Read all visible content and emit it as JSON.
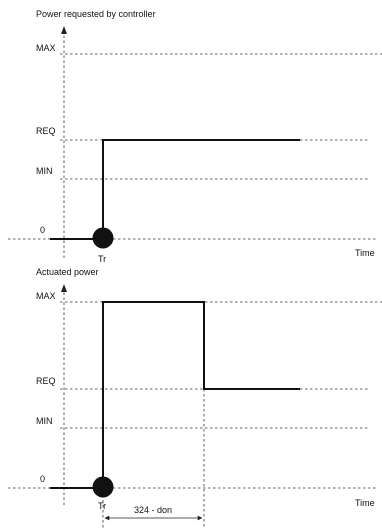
{
  "top_plot": {
    "title": "Power requested by controller",
    "levels": {
      "max": "MAX",
      "req": "REQ",
      "min": "MIN",
      "zero": "0"
    },
    "trigger_label": "Tr",
    "x_axis_label": "Time"
  },
  "bottom_plot": {
    "title": "Actuated power",
    "levels": {
      "max": "MAX",
      "req": "REQ",
      "min": "MIN",
      "zero": "0"
    },
    "trigger_label": "Tr",
    "x_axis_label": "Time",
    "interval_label": "324 - don"
  },
  "colors": {
    "line": "#111111",
    "marker": "#111111",
    "guides": "#333333"
  }
}
